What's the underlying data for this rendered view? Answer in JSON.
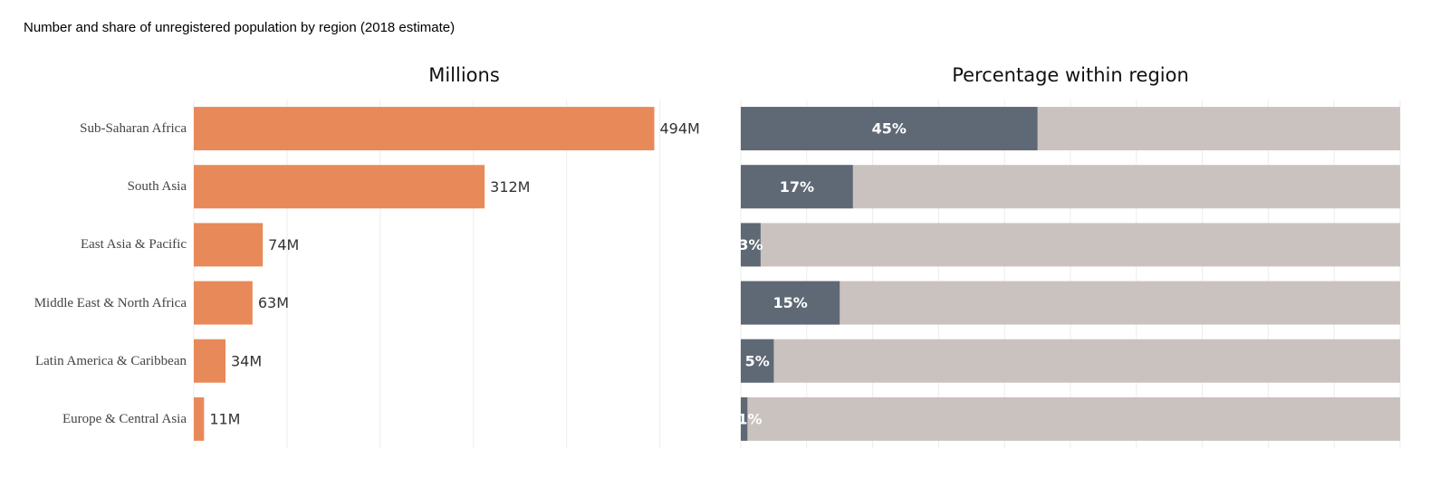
{
  "title": "Number and share of unregistered population by region (2018 estimate)",
  "chart_data": [
    {
      "type": "hbar",
      "title": "Millions",
      "categories": [
        "Sub-Saharan Africa",
        "South Asia",
        "East Asia & Pacific",
        "Middle East & North Africa",
        "Latin America & Caribbean",
        "Europe & Central Asia"
      ],
      "values": [
        494,
        312,
        74,
        63,
        34,
        11
      ],
      "value_labels": [
        "494M",
        "312M",
        "74M",
        "63M",
        "34M",
        "11M"
      ],
      "color": "#e8895a",
      "xlim": [
        0,
        580
      ],
      "xticks": [
        0,
        100,
        200,
        300,
        400,
        500
      ],
      "grid": true
    },
    {
      "type": "hbar-share",
      "title": "Percentage within region",
      "values": [
        45,
        17,
        3,
        15,
        5,
        1
      ],
      "value_labels": [
        "45%",
        "17%",
        "3%",
        "15%",
        "5%",
        "1%"
      ],
      "color": "#5f6875",
      "track_color": "#cac2bf",
      "xlim": [
        0,
        100
      ],
      "xticks": [
        0,
        10,
        20,
        30,
        40,
        50,
        60,
        70,
        80,
        90,
        100
      ],
      "grid": true
    }
  ]
}
